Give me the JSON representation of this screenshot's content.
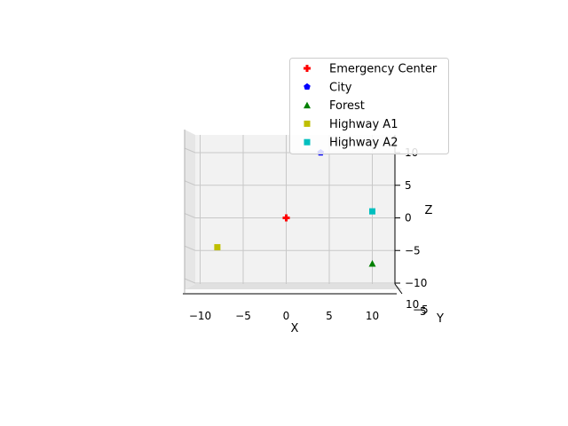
{
  "chart_data": {
    "type": "scatter",
    "projection": "3d",
    "view": "front (looking along Y axis)",
    "xlabel": "X",
    "ylabel": "Y",
    "zlabel": "Z",
    "xlim": [
      -12,
      12
    ],
    "ylim": [
      -10,
      10
    ],
    "zlim": [
      -10,
      10
    ],
    "x_ticks": [
      -10,
      -5,
      0,
      5,
      10
    ],
    "z_ticks": [
      -10,
      -5,
      0,
      5,
      10
    ],
    "y_tick_labels": [
      "10",
      "-5",
      "5"
    ],
    "grid": true,
    "legend_position": "upper-right",
    "series": [
      {
        "name": "Emergency Center",
        "marker": "plus",
        "color": "#ff0000",
        "points": [
          {
            "x": 0,
            "y": 0,
            "z": 0
          }
        ]
      },
      {
        "name": "City",
        "marker": "pentagon",
        "color": "#0000ff",
        "points": [
          {
            "x": 4,
            "y": 0,
            "z": 10
          }
        ]
      },
      {
        "name": "Forest",
        "marker": "triangle",
        "color": "#008000",
        "points": [
          {
            "x": 10,
            "y": 0,
            "z": -7
          }
        ]
      },
      {
        "name": "Highway A1",
        "marker": "square",
        "color": "#bfbf00",
        "points": [
          {
            "x": -8,
            "y": 0,
            "z": -4.5
          }
        ]
      },
      {
        "name": "Highway A2",
        "marker": "square",
        "color": "#00bfbf",
        "points": [
          {
            "x": 10,
            "y": 0,
            "z": 1
          }
        ]
      }
    ]
  }
}
